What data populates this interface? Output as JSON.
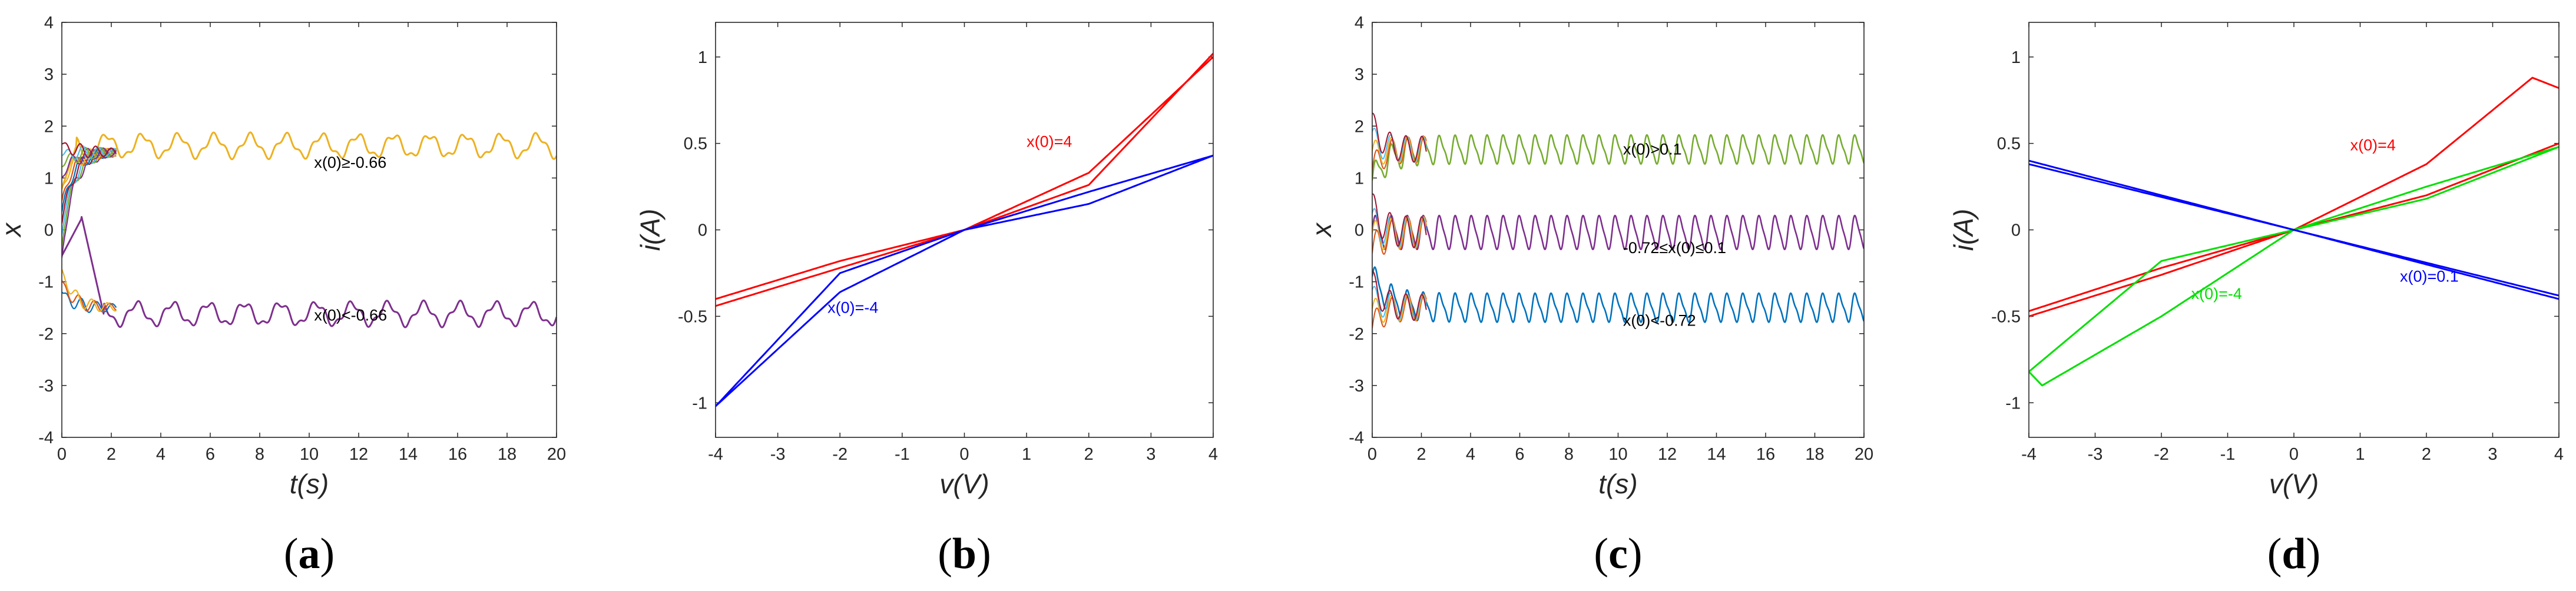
{
  "chart_data": [
    {
      "type": "line",
      "panel_label": "a",
      "xlabel": "t(s)",
      "ylabel": "x",
      "xlim": [
        0,
        20
      ],
      "ylim": [
        -4,
        4
      ],
      "xticks": [
        "0",
        "2",
        "4",
        "6",
        "8",
        "10",
        "12",
        "14",
        "16",
        "18",
        "20"
      ],
      "yticks": [
        "-4",
        "-3",
        "-2",
        "-1",
        "0",
        "1",
        "2",
        "3",
        "4"
      ],
      "annotations": [
        {
          "text": "x(0)≥-0.66",
          "x": 10.2,
          "y": 1.2,
          "color": "#000000"
        },
        {
          "text": "x(0)<-0.66",
          "x": 10.2,
          "y": -1.75,
          "color": "#000000"
        }
      ],
      "series": [
        {
          "name": "upper",
          "color": "#EDB120",
          "transient_from": 0.8,
          "settle": 2.5,
          "level": 1.62,
          "amp": 0.2,
          "period": 1.45
        },
        {
          "name": "lower",
          "color": "#7E2F8E",
          "transient_from": 0.3,
          "settle": 1.6,
          "level": -1.62,
          "amp": 0.2,
          "period": 1.45
        },
        {
          "name": "bundle",
          "color": "#0072BD",
          "transient_from": -1.2,
          "settle": 2.2,
          "level": 1.5,
          "amp": 0.2,
          "period": 0.6
        }
      ]
    },
    {
      "type": "line",
      "panel_label": "b",
      "xlabel": "v(V)",
      "ylabel": "i(A)",
      "xlim": [
        -4,
        4
      ],
      "ylim": [
        -1.2,
        1.2
      ],
      "xticks": [
        "-4",
        "-3",
        "-2",
        "-1",
        "0",
        "1",
        "2",
        "3",
        "4"
      ],
      "yticks": [
        "-1",
        "-0.5",
        "0",
        "0.5",
        "1"
      ],
      "annotations": [
        {
          "text": "x(0)=4",
          "x": 1.0,
          "y": 0.48,
          "color": "#ff0000"
        },
        {
          "text": "x(0)=-4",
          "x": -2.2,
          "y": -0.48,
          "color": "#0000ff"
        }
      ],
      "series": [
        {
          "name": "x(0)=4",
          "color": "#ff0000",
          "upper": [
            [
              -4,
              -0.4
            ],
            [
              -2,
              -0.18
            ],
            [
              0,
              0
            ],
            [
              2,
              0.33
            ],
            [
              4,
              1.0
            ]
          ],
          "lower": [
            [
              -4,
              -0.44
            ],
            [
              -2,
              -0.22
            ],
            [
              0,
              0
            ],
            [
              2,
              0.26
            ],
            [
              4,
              1.02
            ]
          ]
        },
        {
          "name": "x(0)=-4",
          "color": "#0000ff",
          "upper": [
            [
              -4,
              -1.02
            ],
            [
              -2,
              -0.36
            ],
            [
              0,
              0
            ],
            [
              2,
              0.22
            ],
            [
              4,
              0.43
            ]
          ],
          "lower": [
            [
              -4,
              -1.02
            ],
            [
              -2,
              -0.25
            ],
            [
              0,
              0
            ],
            [
              2,
              0.15
            ],
            [
              4,
              0.43
            ]
          ]
        }
      ]
    },
    {
      "type": "line",
      "panel_label": "c",
      "xlabel": "t(s)",
      "ylabel": "x",
      "xlim": [
        0,
        20
      ],
      "ylim": [
        -4,
        4
      ],
      "xticks": [
        "0",
        "2",
        "4",
        "6",
        "8",
        "10",
        "12",
        "14",
        "16",
        "18",
        "20"
      ],
      "yticks": [
        "-4",
        "-3",
        "-2",
        "-1",
        "0",
        "1",
        "2",
        "3",
        "4"
      ],
      "annotations": [
        {
          "text": "x(0)>0.1",
          "x": 10.2,
          "y": 1.45,
          "color": "#000000"
        },
        {
          "text": "-0.72≤x(0)≤0.1",
          "x": 10.2,
          "y": -0.45,
          "color": "#000000"
        },
        {
          "text": "x(0)<-0.72",
          "x": 10.2,
          "y": -1.85,
          "color": "#000000"
        }
      ],
      "series": [
        {
          "name": "x(0)>0.1",
          "color": "#77AC30",
          "level": 1.55,
          "amp": 0.25,
          "period": 0.65
        },
        {
          "name": "-0.72≤x(0)≤0.1",
          "color": "#7E2F8E",
          "level": -0.05,
          "amp": 0.3,
          "period": 0.65
        },
        {
          "name": "x(0)<-0.72",
          "color": "#0072BD",
          "level": -1.5,
          "amp": 0.25,
          "period": 0.65
        }
      ]
    },
    {
      "type": "line",
      "panel_label": "d",
      "xlabel": "v(V)",
      "ylabel": "i(A)",
      "xlim": [
        -4,
        4
      ],
      "ylim": [
        -1.2,
        1.2
      ],
      "xticks": [
        "-4",
        "-3",
        "-2",
        "-1",
        "0",
        "1",
        "2",
        "3",
        "4"
      ],
      "yticks": [
        "-1",
        "-0.5",
        "0",
        "0.5",
        "1"
      ],
      "annotations": [
        {
          "text": "x(0)=4",
          "x": 0.85,
          "y": 0.46,
          "color": "#ff0000"
        },
        {
          "text": "x(0)=-4",
          "x": -1.55,
          "y": -0.4,
          "color": "#00e000"
        },
        {
          "text": "x(0)=0.1",
          "x": 1.6,
          "y": -0.3,
          "color": "#0000ff"
        }
      ],
      "series": [
        {
          "name": "x(0)=4",
          "color": "#ff0000",
          "upper": [
            [
              -4,
              -0.47
            ],
            [
              -2,
              -0.22
            ],
            [
              0,
              0
            ],
            [
              2,
              0.38
            ],
            [
              3.6,
              0.88
            ],
            [
              4,
              0.82
            ]
          ],
          "lower": [
            [
              -4,
              -0.5
            ],
            [
              -2,
              -0.26
            ],
            [
              0,
              0
            ],
            [
              2,
              0.2
            ],
            [
              4,
              0.5
            ]
          ]
        },
        {
          "name": "x(0)=-4",
          "color": "#00e000",
          "upper": [
            [
              -4,
              -0.82
            ],
            [
              -2,
              -0.18
            ],
            [
              0,
              0
            ],
            [
              2,
              0.25
            ],
            [
              4,
              0.48
            ]
          ],
          "lower": [
            [
              -4,
              -0.82
            ],
            [
              -3.8,
              -0.9
            ],
            [
              -2,
              -0.5
            ],
            [
              0,
              0
            ],
            [
              2,
              0.18
            ],
            [
              4,
              0.48
            ]
          ]
        },
        {
          "name": "x(0)=0.1",
          "color": "#0000ff",
          "upper": [
            [
              -4,
              0.4
            ],
            [
              0,
              0
            ],
            [
              4,
              -0.38
            ]
          ],
          "lower": [
            [
              -4,
              0.38
            ],
            [
              0,
              0
            ],
            [
              4,
              -0.4
            ]
          ]
        }
      ]
    }
  ]
}
